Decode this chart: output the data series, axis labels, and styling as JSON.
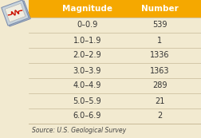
{
  "title_col1": "Magnitude",
  "title_col2": "Number",
  "rows": [
    [
      "0–0.9",
      "539"
    ],
    [
      "1.0–1.9",
      "1"
    ],
    [
      "2.0–2.9",
      "1336"
    ],
    [
      "3.0–3.9",
      "1363"
    ],
    [
      "4.0–4.9",
      "289"
    ],
    [
      "5.0–5.9",
      "21"
    ],
    [
      "6.0–6.9",
      "2"
    ]
  ],
  "source": "Source: U.S. Geological Survey",
  "header_bg": "#F5A800",
  "table_bg": "#F2EAD0",
  "header_text_color": "#FFFFFF",
  "body_text_color": "#333333",
  "source_text_color": "#444444",
  "header_fontsize": 7.5,
  "body_fontsize": 7.0,
  "source_fontsize": 5.5,
  "line_color": "#C8BA98",
  "icon_bg": "#C8D4DC",
  "icon_border": "#8899AA",
  "icon_line_color": "#CC1100",
  "icon_page_color": "#E8E0CC"
}
